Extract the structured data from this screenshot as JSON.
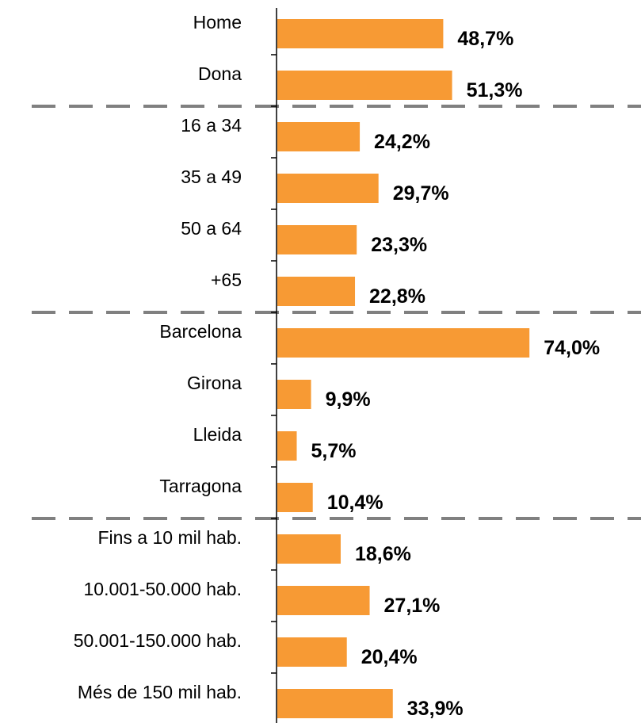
{
  "chart_data": {
    "type": "bar",
    "orientation": "horizontal",
    "categories": [
      "Home",
      "Dona",
      "16 a 34",
      "35 a 49",
      "50 a 64",
      "+65",
      "Barcelona",
      "Girona",
      "Lleida",
      "Tarragona",
      "Fins a 10 mil hab.",
      "10.001-50.000 hab.",
      "50.001-150.000 hab.",
      "Més de 150 mil hab."
    ],
    "values": [
      48.7,
      51.3,
      24.2,
      29.7,
      23.3,
      22.8,
      74.0,
      9.9,
      5.7,
      10.4,
      18.6,
      27.1,
      20.4,
      33.9
    ],
    "value_labels": [
      "48,7%",
      "51,3%",
      "24,2%",
      "29,7%",
      "23,3%",
      "22,8%",
      "74,0%",
      "9,9%",
      "5,7%",
      "10,4%",
      "18,6%",
      "27,1%",
      "20,4%",
      "33,9%"
    ],
    "color": "#f79a34"
  }
}
